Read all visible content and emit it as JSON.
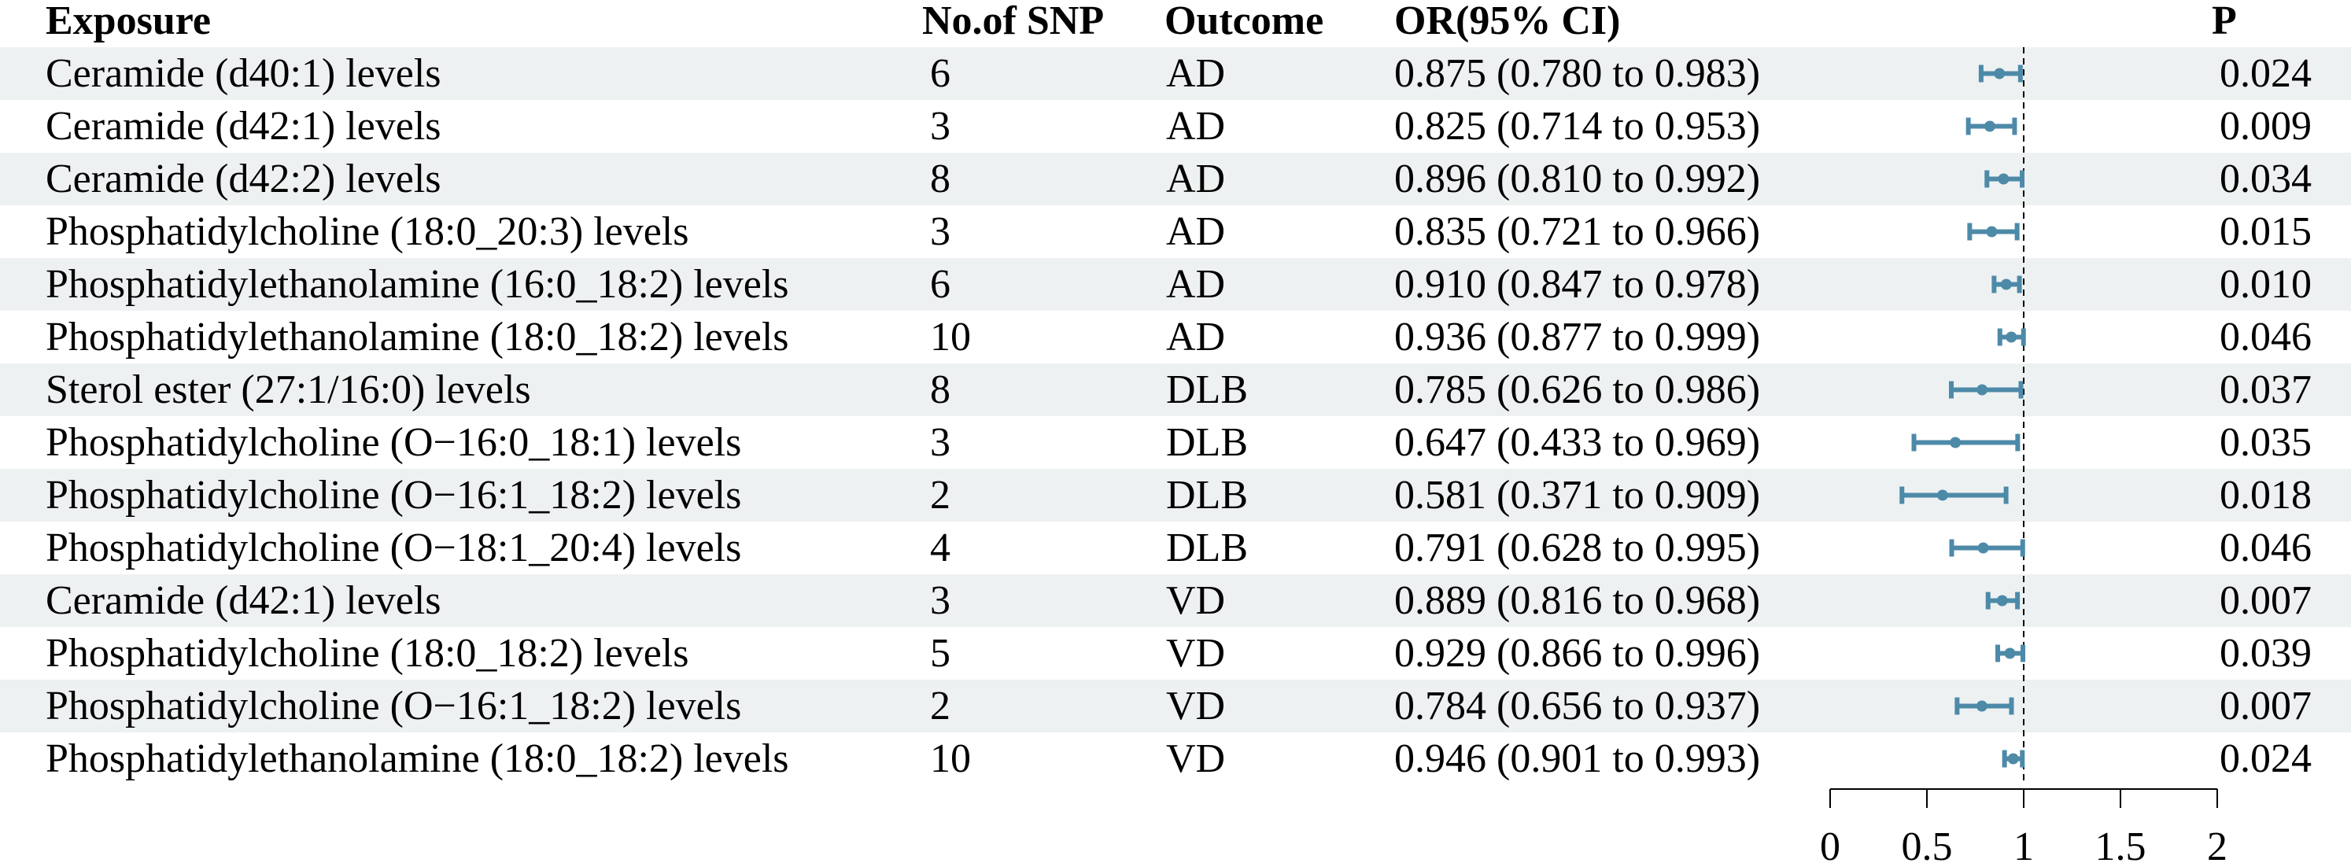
{
  "colors": {
    "stripe": "#eef1f2",
    "ci": "#4d8aa8",
    "axis": "#000000"
  },
  "headers": {
    "exposure": "Exposure",
    "nsnp": "No.of SNP",
    "outcome": "Outcome",
    "or": "OR(95% CI)",
    "p": "P"
  },
  "chart_data": {
    "type": "forest",
    "xlim": [
      0,
      2
    ],
    "xticks": [
      "0",
      "0.5",
      "1",
      "1.5",
      "2"
    ],
    "reference_line": 1,
    "rows": [
      {
        "exposure": "Ceramide (d40:1) levels",
        "nsnp": "6",
        "outcome": "AD",
        "or_text": "0.875 (0.780 to 0.983)",
        "or": 0.875,
        "lo": 0.78,
        "hi": 0.983,
        "p": "0.024"
      },
      {
        "exposure": "Ceramide (d42:1) levels",
        "nsnp": "3",
        "outcome": "AD",
        "or_text": "0.825 (0.714 to 0.953)",
        "or": 0.825,
        "lo": 0.714,
        "hi": 0.953,
        "p": "0.009"
      },
      {
        "exposure": "Ceramide (d42:2) levels",
        "nsnp": "8",
        "outcome": "AD",
        "or_text": "0.896 (0.810 to 0.992)",
        "or": 0.896,
        "lo": 0.81,
        "hi": 0.992,
        "p": "0.034"
      },
      {
        "exposure": "Phosphatidylcholine (18:0_20:3) levels",
        "nsnp": "3",
        "outcome": "AD",
        "or_text": "0.835 (0.721 to 0.966)",
        "or": 0.835,
        "lo": 0.721,
        "hi": 0.966,
        "p": "0.015"
      },
      {
        "exposure": "Phosphatidylethanolamine (16:0_18:2) levels",
        "nsnp": "6",
        "outcome": "AD",
        "or_text": "0.910 (0.847 to 0.978)",
        "or": 0.91,
        "lo": 0.847,
        "hi": 0.978,
        "p": "0.010"
      },
      {
        "exposure": "Phosphatidylethanolamine (18:0_18:2) levels",
        "nsnp": "10",
        "outcome": "AD",
        "or_text": "0.936 (0.877 to 0.999)",
        "or": 0.936,
        "lo": 0.877,
        "hi": 0.999,
        "p": "0.046"
      },
      {
        "exposure": "Sterol ester (27:1/16:0) levels",
        "nsnp": "8",
        "outcome": "DLB",
        "or_text": "0.785 (0.626 to 0.986)",
        "or": 0.785,
        "lo": 0.626,
        "hi": 0.986,
        "p": "0.037"
      },
      {
        "exposure": "Phosphatidylcholine (O−16:0_18:1) levels",
        "nsnp": "3",
        "outcome": "DLB",
        "or_text": "0.647 (0.433 to 0.969)",
        "or": 0.647,
        "lo": 0.433,
        "hi": 0.969,
        "p": "0.035"
      },
      {
        "exposure": "Phosphatidylcholine (O−16:1_18:2) levels",
        "nsnp": "2",
        "outcome": "DLB",
        "or_text": "0.581 (0.371 to 0.909)",
        "or": 0.581,
        "lo": 0.371,
        "hi": 0.909,
        "p": "0.018"
      },
      {
        "exposure": "Phosphatidylcholine (O−18:1_20:4) levels",
        "nsnp": "4",
        "outcome": "DLB",
        "or_text": "0.791 (0.628 to 0.995)",
        "or": 0.791,
        "lo": 0.628,
        "hi": 0.995,
        "p": "0.046"
      },
      {
        "exposure": "Ceramide (d42:1) levels",
        "nsnp": "3",
        "outcome": "VD",
        "or_text": "0.889 (0.816 to 0.968)",
        "or": 0.889,
        "lo": 0.816,
        "hi": 0.968,
        "p": "0.007"
      },
      {
        "exposure": "Phosphatidylcholine (18:0_18:2) levels",
        "nsnp": "5",
        "outcome": "VD",
        "or_text": "0.929 (0.866 to 0.996)",
        "or": 0.929,
        "lo": 0.866,
        "hi": 0.996,
        "p": "0.039"
      },
      {
        "exposure": "Phosphatidylcholine (O−16:1_18:2) levels",
        "nsnp": "2",
        "outcome": "VD",
        "or_text": "0.784 (0.656 to 0.937)",
        "or": 0.784,
        "lo": 0.656,
        "hi": 0.937,
        "p": "0.007"
      },
      {
        "exposure": "Phosphatidylethanolamine (18:0_18:2) levels",
        "nsnp": "10",
        "outcome": "VD",
        "or_text": "0.946 (0.901 to 0.993)",
        "or": 0.946,
        "lo": 0.901,
        "hi": 0.993,
        "p": "0.024"
      }
    ]
  }
}
